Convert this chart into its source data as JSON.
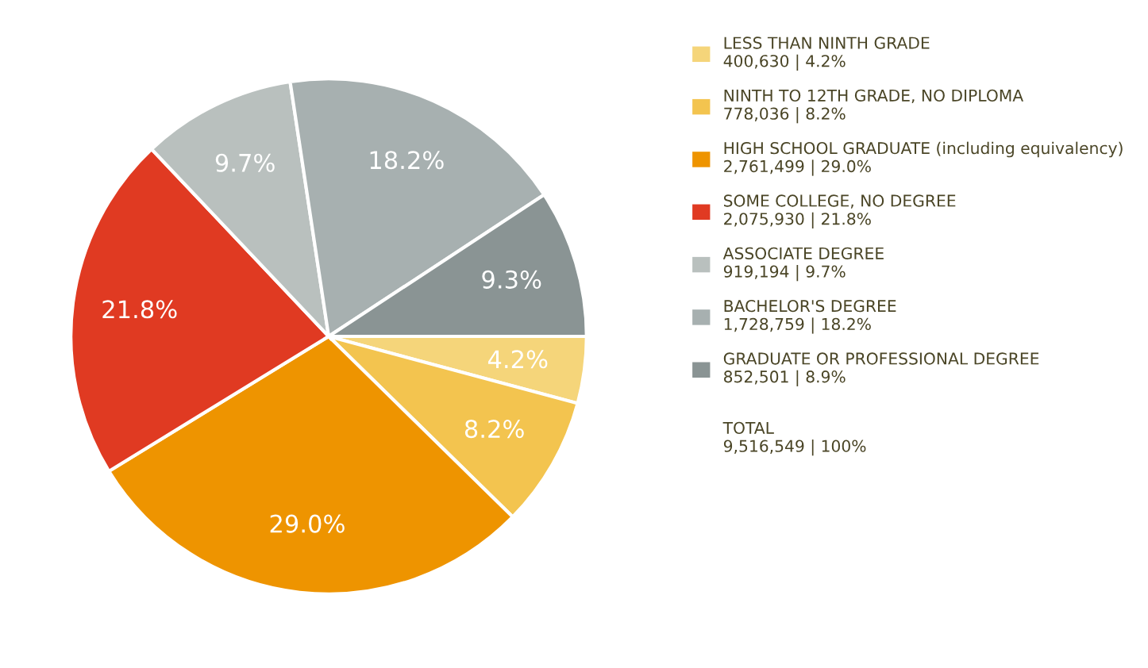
{
  "chart_data": {
    "type": "pie",
    "categories": [
      "LESS THAN NINTH GRADE\n400,630 | 4.2%",
      "NINTH TO 12TH GRADE, NO DIPLOMA\n778,036 | 8.2%",
      "HIGH SCHOOL GRADUATE (including equivalency)\n2,761,499 | 29.0%",
      "SOME COLLEGE, NO DEGREE\n2,075,930 | 21.8%",
      "ASSOCIATE DEGREE\n919,194 | 9.7%",
      "BACHELOR'S DEGREE\n1,728,759 | 18.2%",
      "GRADUATE OR PROFESSIONAL DEGREE\n852,501 | 8.9%"
    ],
    "values": [
      4.2,
      8.2,
      29.0,
      21.8,
      9.7,
      18.2,
      9.3
    ],
    "value_labels": [
      "4.2%",
      "8.2%",
      "29.0%",
      "21.8%",
      "9.7%",
      "18.2%",
      "9.3%"
    ],
    "colors": [
      "#f5d57a",
      "#f3c44f",
      "#ee9400",
      "#e03a22",
      "#b9c0be",
      "#a7b0b0",
      "#8a9494"
    ],
    "legend": "right",
    "annotations": [
      "TOTAL\n9,516,549 | 100%"
    ]
  }
}
